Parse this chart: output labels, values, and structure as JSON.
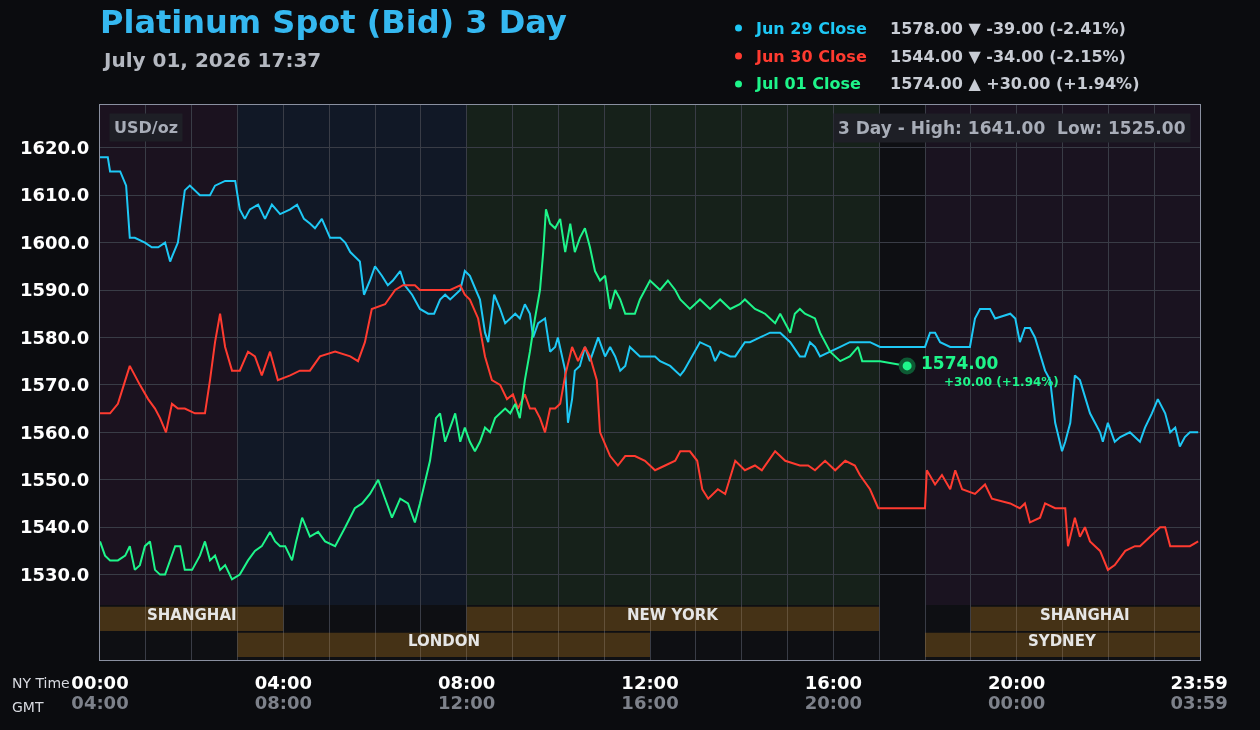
{
  "chart_data": {
    "type": "line",
    "title": "Platinum Spot (Bid) 3 Day",
    "subtitle": "July 01, 2026 17:37",
    "xlabel": "NY Time",
    "x2label": "GMT",
    "annotations": [
      "USD/oz",
      "3 Day - High: 1641.00  Low: 1525.00",
      "1578.00 ▼ -39.00 (-2.41%)",
      "1544.00 ▼ -34.00 (-2.15%)",
      "1574.00 ▲ +30.00 (+1.94%)",
      "+30.00 (+1.94%)",
      {
        "text": "1574.00",
        "x": 17.61,
        "y": 1574
      }
    ],
    "series": [
      {
        "name": "Jun 29 Close",
        "color": "#1ec8f5",
        "x": [
          0,
          0.17,
          0.22,
          0.44,
          0.57,
          0.65,
          0.76,
          0.98,
          1.13,
          1.27,
          1.42,
          1.53,
          1.57,
          1.7,
          1.85,
          1.96,
          2.18,
          2.4,
          2.51,
          2.73,
          2.95,
          3.05,
          3.16,
          3.27,
          3.45,
          3.6,
          3.75,
          3.93,
          4.15,
          4.3,
          4.45,
          4.58,
          4.69,
          4.84,
          5.02,
          5.24,
          5.35,
          5.46,
          5.67,
          5.76,
          5.89,
          6,
          6.15,
          6.28,
          6.39,
          6.55,
          6.65,
          6.81,
          6.98,
          7.16,
          7.29,
          7.42,
          7.53,
          7.64,
          7.86,
          7.96,
          8.07,
          8.2,
          8.29,
          8.4,
          8.47,
          8.6,
          8.73,
          8.84,
          8.95,
          9.06,
          9.16,
          9.27,
          9.38,
          9.45,
          9.56,
          9.71,
          9.82,
          9.93,
          9.99,
          10.15,
          10.21,
          10.3,
          10.36,
          10.47,
          10.58,
          10.69,
          10.87,
          11.02,
          11.13,
          11.24,
          11.35,
          11.46,
          11.56,
          11.78,
          12,
          12.11,
          12.22,
          12.44,
          12.66,
          12.74,
          13.09,
          13.31,
          13.42,
          13.53,
          13.75,
          13.86,
          14.07,
          14.18,
          14.4,
          14.62,
          14.84,
          15.06,
          15.27,
          15.38,
          15.49,
          15.6,
          15.71,
          15.93,
          16.15,
          16.36,
          16.8,
          17.02,
          17.46,
          18,
          18.11,
          18.22,
          18.33,
          18.55,
          18.98,
          19.09,
          19.2,
          19.42,
          19.53,
          19.86,
          19.97,
          20.07,
          20.18,
          20.29,
          20.4,
          20.62,
          20.73,
          20.84,
          20.99,
          21.06,
          21.17,
          21.27,
          21.38,
          21.6,
          21.82,
          21.88,
          21.99,
          22.14,
          22.26,
          22.47,
          22.69,
          22.8,
          22.95,
          23.08,
          23.24,
          23.35,
          23.46,
          23.56,
          23.67,
          23.78,
          23.96
        ],
        "values": [
          1618,
          1618,
          1615,
          1615,
          1612,
          1601,
          1601,
          1600,
          1599,
          1599,
          1600,
          1596,
          1597,
          1600,
          1611,
          1612,
          1610,
          1610,
          1612,
          1613,
          1613,
          1607,
          1605,
          1607,
          1608,
          1605,
          1608,
          1606,
          1607,
          1608,
          1605,
          1604,
          1603,
          1605,
          1601,
          1601,
          1600,
          1598,
          1596,
          1589,
          1592,
          1595,
          1593,
          1591,
          1592,
          1594,
          1591,
          1589,
          1586,
          1585,
          1585,
          1588,
          1589,
          1588,
          1590,
          1594,
          1593,
          1590,
          1588,
          1581,
          1579,
          1589,
          1586,
          1583,
          1584,
          1585,
          1584,
          1587,
          1585,
          1580,
          1583,
          1584,
          1577,
          1578,
          1580,
          1573,
          1562,
          1567,
          1573,
          1574,
          1578,
          1575,
          1580,
          1576,
          1578,
          1576,
          1573,
          1574,
          1578,
          1576,
          1576,
          1576,
          1575,
          1574,
          1572,
          1573,
          1579,
          1578,
          1575,
          1577,
          1576,
          1576,
          1579,
          1579,
          1580,
          1581,
          1581,
          1579,
          1576,
          1576,
          1579,
          1578,
          1576,
          1577,
          1578,
          1579,
          1579,
          1578,
          1578,
          1578,
          1581,
          1581,
          1579,
          1578,
          1578,
          1584,
          1586,
          1586,
          1584,
          1585,
          1584,
          1579,
          1582,
          1582,
          1580,
          1573,
          1571,
          1562,
          1556,
          1558,
          1562,
          1572,
          1571,
          1564,
          1560,
          1558,
          1562,
          1558,
          1559,
          1560,
          1558,
          1561,
          1564,
          1567,
          1564,
          1560,
          1561,
          1557,
          1559,
          1560,
          1560
        ]
      },
      {
        "name": "Jun 30 Close",
        "color": "#ff3b30",
        "x": [
          0,
          0.22,
          0.39,
          0.52,
          0.65,
          0.76,
          0.87,
          1.05,
          1.2,
          1.31,
          1.44,
          1.57,
          1.7,
          1.85,
          2.07,
          2.29,
          2.4,
          2.51,
          2.62,
          2.73,
          2.88,
          3.05,
          3.23,
          3.38,
          3.53,
          3.71,
          3.88,
          4.15,
          4.36,
          4.58,
          4.8,
          5.13,
          5.46,
          5.63,
          5.78,
          5.93,
          6.22,
          6.44,
          6.61,
          6.87,
          6.98,
          7.2,
          7.42,
          7.64,
          7.86,
          7.96,
          8.07,
          8.25,
          8.4,
          8.55,
          8.73,
          8.88,
          9.01,
          9.12,
          9.27,
          9.38,
          9.49,
          9.6,
          9.71,
          9.82,
          9.93,
          10.04,
          10.15,
          10.3,
          10.43,
          10.58,
          10.69,
          10.84,
          10.91,
          11.13,
          11.3,
          11.46,
          11.67,
          11.89,
          12.11,
          12.33,
          12.55,
          12.66,
          12.87,
          13.03,
          13.14,
          13.27,
          13.48,
          13.64,
          13.86,
          14.07,
          14.29,
          14.44,
          14.73,
          14.95,
          15.27,
          15.45,
          15.6,
          15.82,
          16.04,
          16.26,
          16.47,
          16.58,
          16.8,
          16.98,
          17.46,
          18,
          18.04,
          18.22,
          18.37,
          18.55,
          18.66,
          18.81,
          19.09,
          19.31,
          19.46,
          19.86,
          20.07,
          20.18,
          20.29,
          20.51,
          20.62,
          20.84,
          21.06,
          21.12,
          21.27,
          21.38,
          21.49,
          21.6,
          21.82,
          21.99,
          22.14,
          22.37,
          22.58,
          22.69,
          22.91,
          23.13,
          23.24,
          23.35,
          23.57,
          23.78,
          23.96
        ],
        "values": [
          1564,
          1564,
          1566,
          1570,
          1574,
          1572,
          1570,
          1567,
          1565,
          1563,
          1560,
          1566,
          1565,
          1565,
          1564,
          1564,
          1571,
          1579,
          1585,
          1578,
          1573,
          1573,
          1577,
          1576,
          1572,
          1577,
          1571,
          1572,
          1573,
          1573,
          1576,
          1577,
          1576,
          1575,
          1579,
          1586,
          1587,
          1590,
          1591,
          1591,
          1590,
          1590,
          1590,
          1590,
          1591,
          1589,
          1588,
          1584,
          1576,
          1571,
          1570,
          1567,
          1568,
          1565,
          1568,
          1565,
          1565,
          1563,
          1560,
          1565,
          1565,
          1566,
          1572,
          1578,
          1575,
          1578,
          1576,
          1571,
          1560,
          1555,
          1553,
          1555,
          1555,
          1554,
          1552,
          1553,
          1554,
          1556,
          1556,
          1554,
          1548,
          1546,
          1548,
          1547,
          1554,
          1552,
          1553,
          1552,
          1556,
          1554,
          1553,
          1553,
          1552,
          1554,
          1552,
          1554,
          1553,
          1551,
          1548,
          1544,
          1544,
          1544,
          1552,
          1549,
          1551,
          1548,
          1552,
          1548,
          1547,
          1549,
          1546,
          1545,
          1544,
          1545,
          1541,
          1542,
          1545,
          1544,
          1544,
          1536,
          1542,
          1538,
          1540,
          1537,
          1535,
          1531,
          1532,
          1535,
          1536,
          1536,
          1538,
          1540,
          1540,
          1536,
          1536,
          1536,
          1537
        ]
      },
      {
        "name": "Jul 01 Close",
        "color": "#1ef58a",
        "x": [
          0,
          0.11,
          0.22,
          0.39,
          0.55,
          0.65,
          0.76,
          0.87,
          0.98,
          1.09,
          1.2,
          1.31,
          1.42,
          1.53,
          1.64,
          1.75,
          1.85,
          2.01,
          2.18,
          2.29,
          2.4,
          2.51,
          2.62,
          2.73,
          2.88,
          3.05,
          3.23,
          3.38,
          3.53,
          3.71,
          3.82,
          3.93,
          4.04,
          4.19,
          4.28,
          4.41,
          4.58,
          4.76,
          4.91,
          5.13,
          5.35,
          5.56,
          5.72,
          5.89,
          6.07,
          6.22,
          6.37,
          6.55,
          6.72,
          6.87,
          6.98,
          7.2,
          7.33,
          7.42,
          7.53,
          7.64,
          7.75,
          7.86,
          7.96,
          8.07,
          8.18,
          8.29,
          8.4,
          8.51,
          8.62,
          8.73,
          8.84,
          8.95,
          9.06,
          9.16,
          9.27,
          9.38,
          9.49,
          9.6,
          9.67,
          9.73,
          9.82,
          9.93,
          10.04,
          10.15,
          10.26,
          10.36,
          10.47,
          10.58,
          10.69,
          10.8,
          10.91,
          11.02,
          11.13,
          11.24,
          11.35,
          11.46,
          11.67,
          11.78,
          12,
          12.22,
          12.39,
          12.55,
          12.66,
          12.87,
          13.09,
          13.31,
          13.53,
          13.75,
          13.96,
          14.07,
          14.29,
          14.51,
          14.73,
          14.84,
          15.06,
          15.16,
          15.27,
          15.38,
          15.6,
          15.71,
          15.93,
          16.15,
          16.36,
          16.54,
          16.63,
          16.8,
          17.02,
          17.61
        ],
        "values": [
          1537,
          1534,
          1533,
          1533,
          1534,
          1536,
          1531,
          1532,
          1536,
          1537,
          1531,
          1530,
          1530,
          1533,
          1536,
          1536,
          1531,
          1531,
          1534,
          1537,
          1533,
          1534,
          1531,
          1532,
          1529,
          1530,
          1533,
          1535,
          1536,
          1539,
          1537,
          1536,
          1536,
          1533,
          1537,
          1542,
          1538,
          1539,
          1537,
          1536,
          1540,
          1544,
          1545,
          1547,
          1550,
          1546,
          1542,
          1546,
          1545,
          1541,
          1545,
          1554,
          1563,
          1564,
          1558,
          1561,
          1564,
          1558,
          1561,
          1558,
          1556,
          1558,
          1561,
          1560,
          1563,
          1564,
          1565,
          1564,
          1566,
          1563,
          1571,
          1577,
          1584,
          1590,
          1598,
          1607,
          1604,
          1603,
          1605,
          1598,
          1604,
          1598,
          1601,
          1603,
          1599,
          1594,
          1592,
          1593,
          1586,
          1590,
          1588,
          1585,
          1585,
          1588,
          1592,
          1590,
          1592,
          1590,
          1588,
          1586,
          1588,
          1586,
          1588,
          1586,
          1587,
          1588,
          1586,
          1585,
          1583,
          1585,
          1581,
          1585,
          1586,
          1585,
          1584,
          1581,
          1577,
          1575,
          1576,
          1578,
          1575,
          1575,
          1575,
          1574
        ]
      }
    ],
    "xlim": [
      0,
      24
    ],
    "xticks": [
      {
        "value": 0,
        "label": "00:00"
      },
      {
        "value": 1,
        "label": null
      },
      {
        "value": 2,
        "label": null
      },
      {
        "value": 3,
        "label": null
      },
      {
        "value": 4,
        "label": "04:00"
      },
      {
        "value": 5,
        "label": null
      },
      {
        "value": 6,
        "label": null
      },
      {
        "value": 7,
        "label": null
      },
      {
        "value": 8,
        "label": "08:00"
      },
      {
        "value": 9,
        "label": null
      },
      {
        "value": 10,
        "label": null
      },
      {
        "value": 11,
        "label": null
      },
      {
        "value": 12,
        "label": "12:00"
      },
      {
        "value": 13,
        "label": null
      },
      {
        "value": 14,
        "label": null
      },
      {
        "value": 15,
        "label": null
      },
      {
        "value": 16,
        "label": "16:00"
      },
      {
        "value": 17,
        "label": null
      },
      {
        "value": 18,
        "label": null
      },
      {
        "value": 19,
        "label": null
      },
      {
        "value": 20,
        "label": "20:00"
      },
      {
        "value": 21,
        "label": null
      },
      {
        "value": 22,
        "label": null
      },
      {
        "value": 23,
        "label": null
      },
      {
        "value": 23.98,
        "label": "23:59"
      }
    ],
    "x2lim": [
      "2026-07-01T04:00",
      "2026-07-02T04:00"
    ],
    "x2ticks": [
      {
        "value": "2026-07-01T04:00",
        "label": "04:00"
      },
      {
        "value": "2026-07-01T08:00",
        "label": "08:00"
      },
      {
        "value": "2026-07-01T12:00",
        "label": "12:00"
      },
      {
        "value": "2026-07-01T16:00",
        "label": "16:00"
      },
      {
        "value": "2026-07-01T20:00",
        "label": "20:00"
      },
      {
        "value": "2026-07-02T00:00",
        "label": "00:00"
      },
      {
        "value": "2026-07-02T03:59",
        "label": "03:59"
      }
    ],
    "ylim": [
      1512,
      1629
    ],
    "yticks": [
      {
        "value": 1530,
        "label": "1530.0"
      },
      {
        "value": 1540,
        "label": "1540.0"
      },
      {
        "value": 1550,
        "label": "1550.0"
      },
      {
        "value": 1560,
        "label": "1560.0"
      },
      {
        "value": 1570,
        "label": "1570.0"
      },
      {
        "value": 1580,
        "label": "1580.0"
      },
      {
        "value": 1590,
        "label": "1590.0"
      },
      {
        "value": 1600,
        "label": "1600.0"
      },
      {
        "value": 1610,
        "label": "1610.0"
      },
      {
        "value": 1620,
        "label": "1620.0"
      }
    ],
    "bands": [
      {
        "axis": "x",
        "from": 0,
        "to": 3,
        "color": "#1b121f"
      },
      {
        "axis": "x",
        "from": 3,
        "to": 8,
        "color": "#111826"
      },
      {
        "axis": "x",
        "from": 8,
        "to": 17,
        "color": "#16211a"
      },
      {
        "axis": "x",
        "from": 18,
        "to": 24,
        "color": "#1a1320"
      },
      {
        "axis": "x",
        "from": 0,
        "to": 4,
        "label": "SHANGHAI",
        "color": "#c8861e"
      },
      {
        "axis": "x",
        "from": 3,
        "to": 12,
        "label": "LONDON",
        "color": "#c8861e"
      },
      {
        "axis": "x",
        "from": 8,
        "to": 17,
        "label": "NEW YORK",
        "color": "#c8861e"
      },
      {
        "axis": "x",
        "from": 19,
        "to": 24,
        "label": "SHANGHAI",
        "color": "#c8861e"
      },
      {
        "axis": "x",
        "from": 18,
        "to": 24,
        "label": "SYDNEY",
        "color": "#c8861e"
      }
    ],
    "grid": true,
    "legend": "top right"
  }
}
